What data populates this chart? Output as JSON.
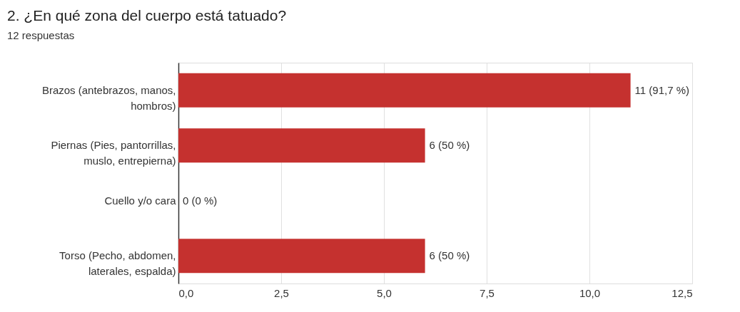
{
  "chart_data": {
    "type": "bar",
    "orientation": "horizontal",
    "title": "2. ¿En qué zona del cuerpo está tatuado?",
    "subtitle": "12 respuestas",
    "categories": [
      "Brazos (antebrazos, manos, hombros)",
      "Piernas (Pies, pantorrillas, muslo, entrepierna)",
      "Cuello y/o cara",
      "Torso (Pecho, abdomen, laterales, espalda)"
    ],
    "values": [
      11,
      6,
      0,
      6
    ],
    "color": "#c5312f",
    "value_labels": [
      "11 (91,7 %)",
      "6 (50 %)",
      "0 (0 %)",
      "6 (50 %)"
    ],
    "xlim": [
      0,
      12.5
    ],
    "xticks": [
      {
        "value": 0,
        "label": "0,0"
      },
      {
        "value": 2.5,
        "label": "2,5"
      },
      {
        "value": 5,
        "label": "5,0"
      },
      {
        "value": 7.5,
        "label": "7,5"
      },
      {
        "value": 10,
        "label": "10,0"
      },
      {
        "value": 12.5,
        "label": "12,5"
      }
    ],
    "grid": "x"
  }
}
